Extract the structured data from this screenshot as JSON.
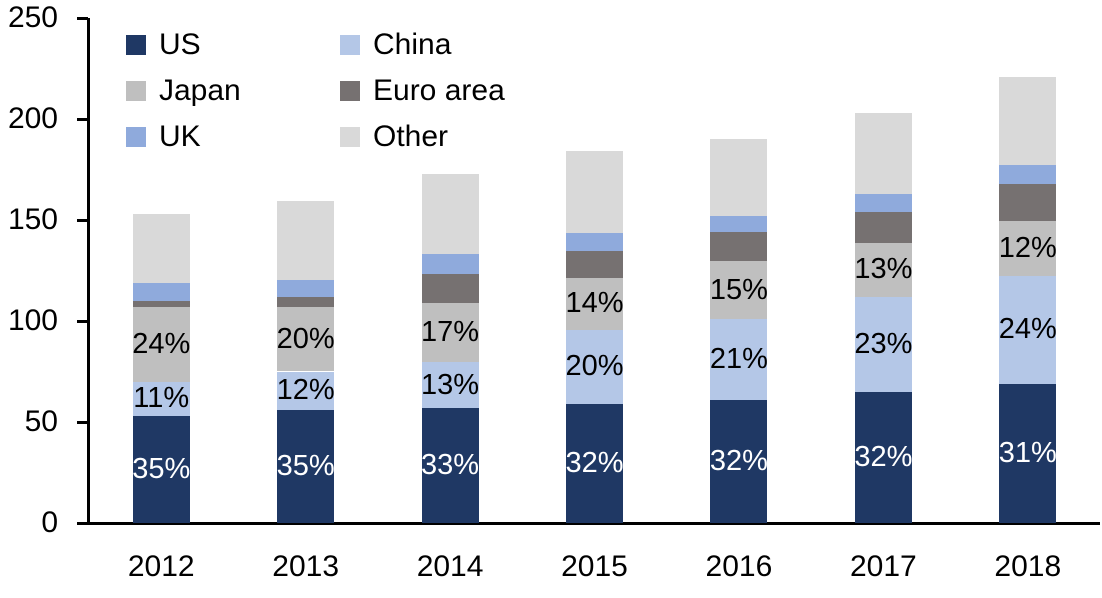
{
  "chart_data": {
    "type": "bar",
    "variant": "stacked-vertical",
    "title": "",
    "xlabel": "",
    "ylabel": "",
    "categories": [
      "2012",
      "2013",
      "2014",
      "2015",
      "2016",
      "2017",
      "2018"
    ],
    "series": [
      {
        "name": "US",
        "color": "#1f3864",
        "label_text_color": "#ffffff",
        "values": [
          53,
          56,
          57,
          59,
          61,
          65,
          69
        ],
        "percent_labels": [
          "35%",
          "35%",
          "33%",
          "32%",
          "32%",
          "32%",
          "31%"
        ]
      },
      {
        "name": "China",
        "color": "#b4c7e7",
        "label_text_color": "#000000",
        "values": [
          17,
          19,
          22.5,
          36.5,
          40,
          47,
          53.5
        ],
        "percent_labels": [
          "11%",
          "12%",
          "13%",
          "20%",
          "21%",
          "23%",
          "24%"
        ]
      },
      {
        "name": "Japan",
        "color": "#bfbfbf",
        "label_text_color": "#000000",
        "values": [
          37,
          32,
          29.5,
          26,
          28.5,
          26.5,
          27
        ],
        "percent_labels": [
          "24%",
          "20%",
          "17%",
          "14%",
          "15%",
          "13%",
          "12%"
        ]
      },
      {
        "name": "Euro area",
        "color": "#767171",
        "label_text_color": "#000000",
        "values": [
          3,
          5,
          14.5,
          13,
          14.5,
          15.5,
          18.5
        ],
        "percent_labels": null
      },
      {
        "name": "UK",
        "color": "#8faadc",
        "label_text_color": "#000000",
        "values": [
          9,
          8.5,
          9.5,
          9,
          8,
          9,
          9
        ],
        "percent_labels": null
      },
      {
        "name": "Other",
        "color": "#d9d9d9",
        "label_text_color": "#000000",
        "values": [
          34,
          39,
          40,
          40.5,
          38,
          40,
          44
        ],
        "percent_labels": null
      }
    ],
    "approx_totals": [
      153,
      159.5,
      173,
      184,
      190,
      203,
      221
    ],
    "y_axis": {
      "min": 0,
      "max": 250,
      "step": 50,
      "tick_labels": [
        "0",
        "50",
        "100",
        "150",
        "200",
        "250"
      ]
    },
    "legend": {
      "position": "top-left",
      "columns": 2,
      "entries": [
        "US",
        "China",
        "Japan",
        "Euro area",
        "UK",
        "Other"
      ]
    },
    "grid": "off",
    "axis_color": "#000000",
    "background_color": "#ffffff"
  }
}
